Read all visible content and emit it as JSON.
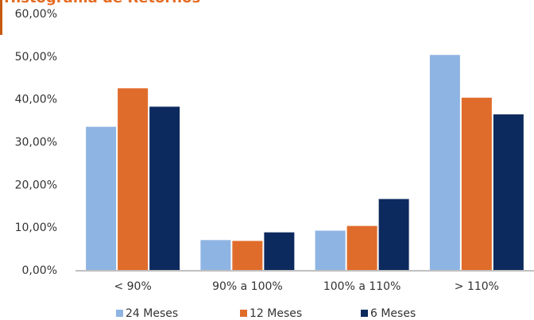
{
  "colors": {
    "title": "#E46C22",
    "accent_bar": "#C55A11",
    "axis": "#808080"
  },
  "chart_data": {
    "type": "bar",
    "title": "Histograma de Retornos",
    "categories": [
      "< 90%",
      "90% a 100%",
      "100% a 110%",
      "> 110%"
    ],
    "series": [
      {
        "name": "24 Meses",
        "color": "#8EB4E3",
        "values": [
          33.5,
          7.0,
          9.2,
          50.3
        ]
      },
      {
        "name": "12 Meses",
        "color": "#E06C2B",
        "values": [
          42.5,
          6.8,
          10.3,
          40.3
        ]
      },
      {
        "name": "6 Meses",
        "color": "#0D2A5E",
        "values": [
          38.2,
          8.8,
          16.6,
          36.4
        ]
      }
    ],
    "ylim": [
      0,
      60
    ],
    "yticks": [
      "0,00%",
      "10,00%",
      "20,00%",
      "30,00%",
      "40,00%",
      "50,00%",
      "60,00%"
    ],
    "grid": false,
    "legend_position": "bottom"
  }
}
